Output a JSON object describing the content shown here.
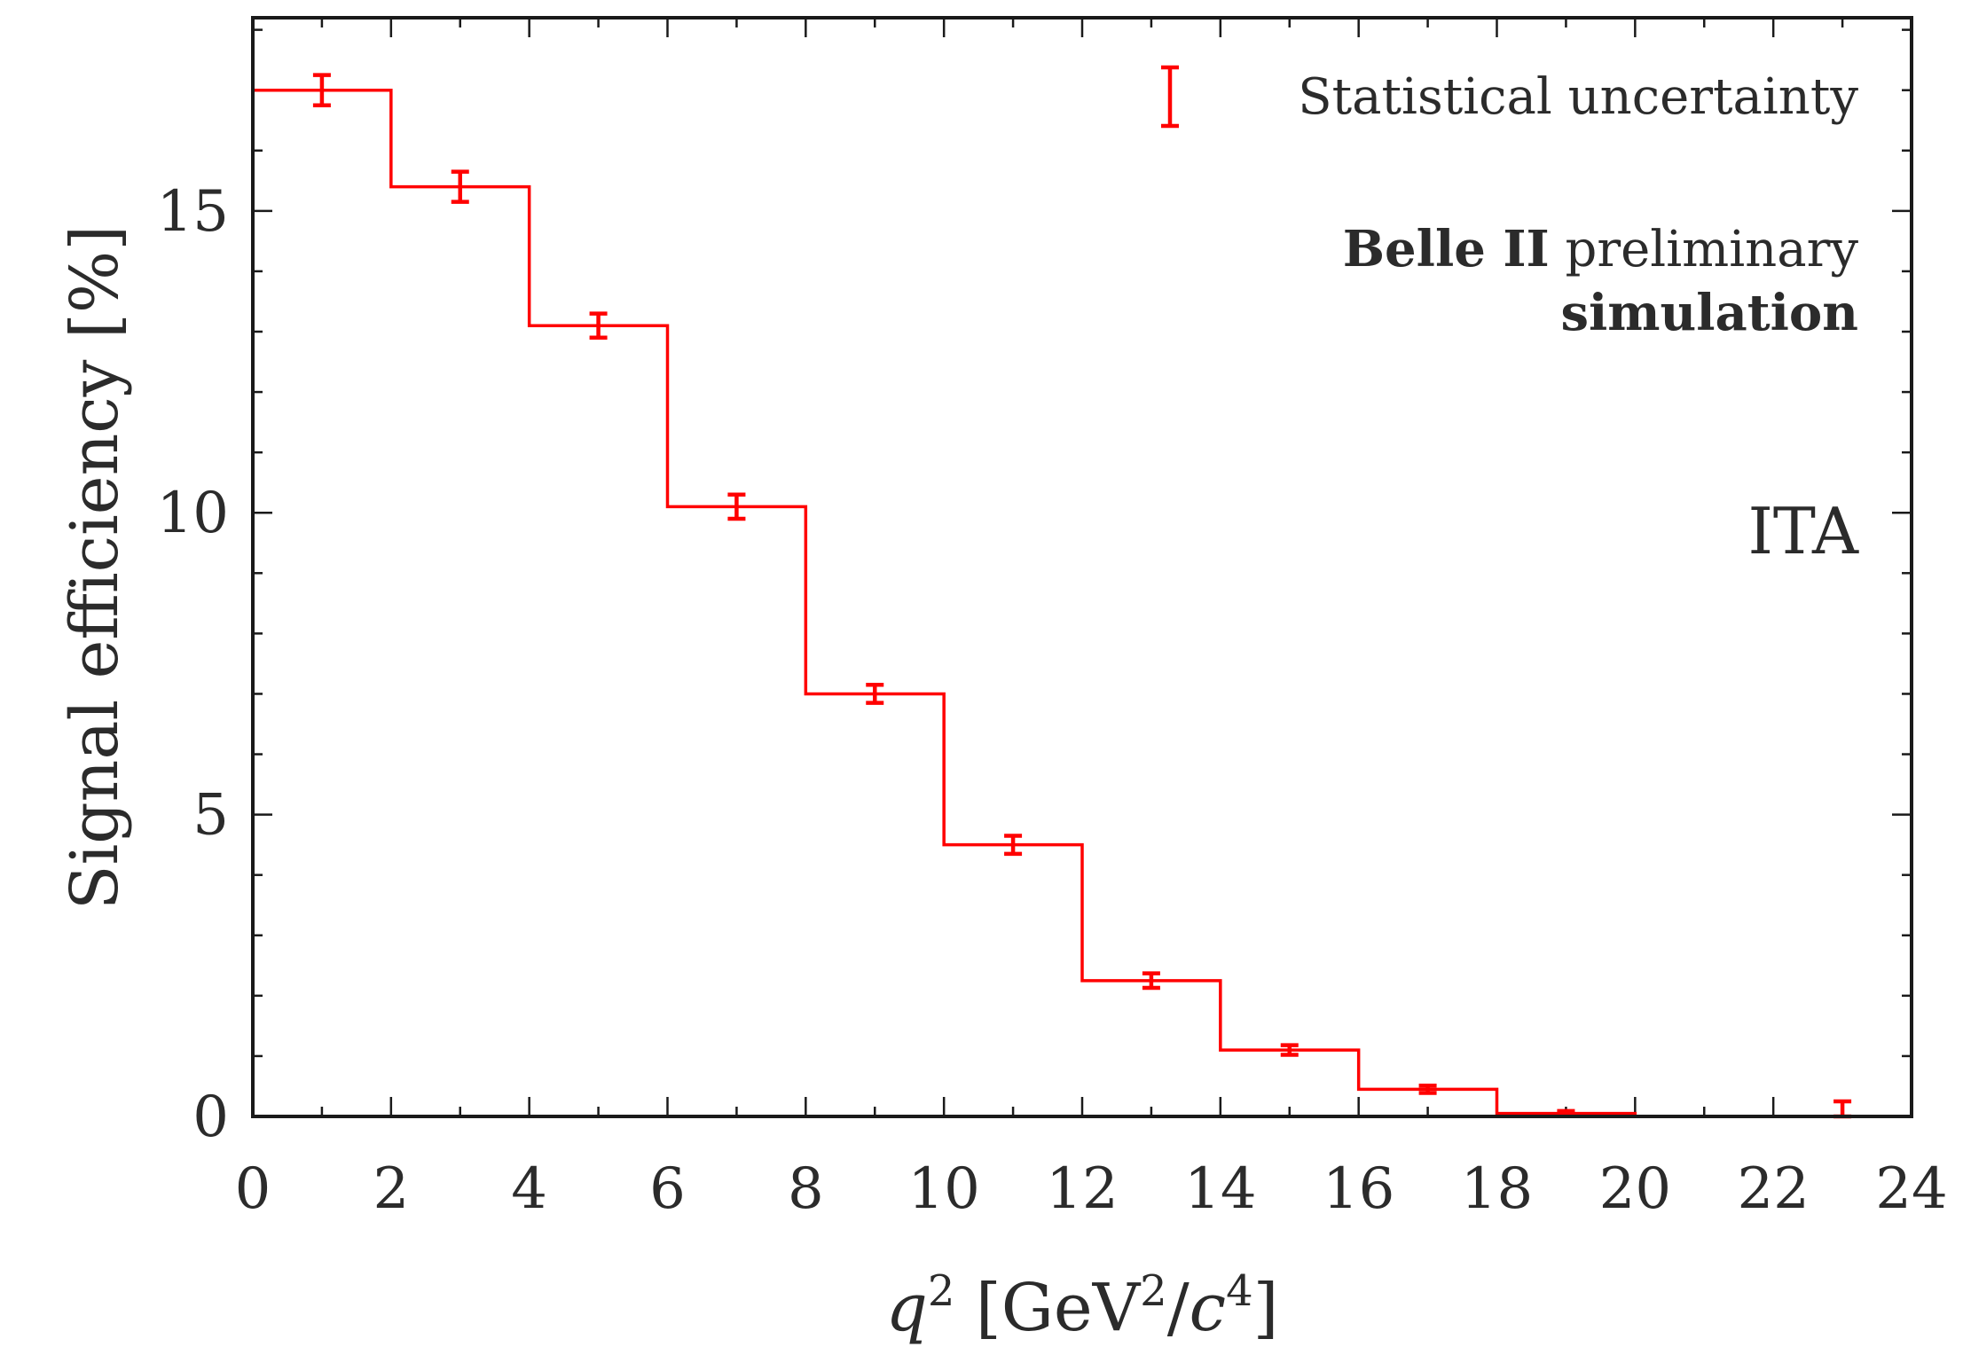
{
  "chart_data": {
    "type": "histogram",
    "x_axis": {
      "label_var": "q",
      "label_var_sup": "2",
      "label_unit_open": " [GeV",
      "label_unit_sup1": "2",
      "label_unit_mid": "/",
      "label_unit_c": "c",
      "label_unit_sup2": "4",
      "label_unit_close": "]",
      "range": [
        0,
        24
      ],
      "ticks": [
        "0",
        "2",
        "4",
        "6",
        "8",
        "10",
        "12",
        "14",
        "16",
        "18",
        "20",
        "22",
        "24"
      ]
    },
    "y_axis": {
      "label": "Signal efficiency [%]",
      "range": [
        0,
        18.2
      ],
      "ticks": [
        "0",
        "5",
        "10",
        "15"
      ]
    },
    "bins": {
      "edges": [
        0,
        2,
        4,
        6,
        8,
        10,
        12,
        14,
        16,
        18,
        20,
        22,
        24
      ],
      "values": [
        17.0,
        15.4,
        13.1,
        10.1,
        7.0,
        4.5,
        2.25,
        1.1,
        0.45,
        0.05,
        0.0,
        0.0
      ],
      "errors": [
        0.25,
        0.25,
        0.2,
        0.2,
        0.15,
        0.15,
        0.12,
        0.08,
        0.06,
        0.04,
        0.0,
        0.25
      ]
    },
    "color": "#ff0000",
    "legend": {
      "label": "Statistical uncertainty",
      "placement": "top-right"
    },
    "annotations": {
      "experiment": "Belle II",
      "status": " preliminary",
      "kind": "simulation",
      "method": "ITA"
    }
  }
}
